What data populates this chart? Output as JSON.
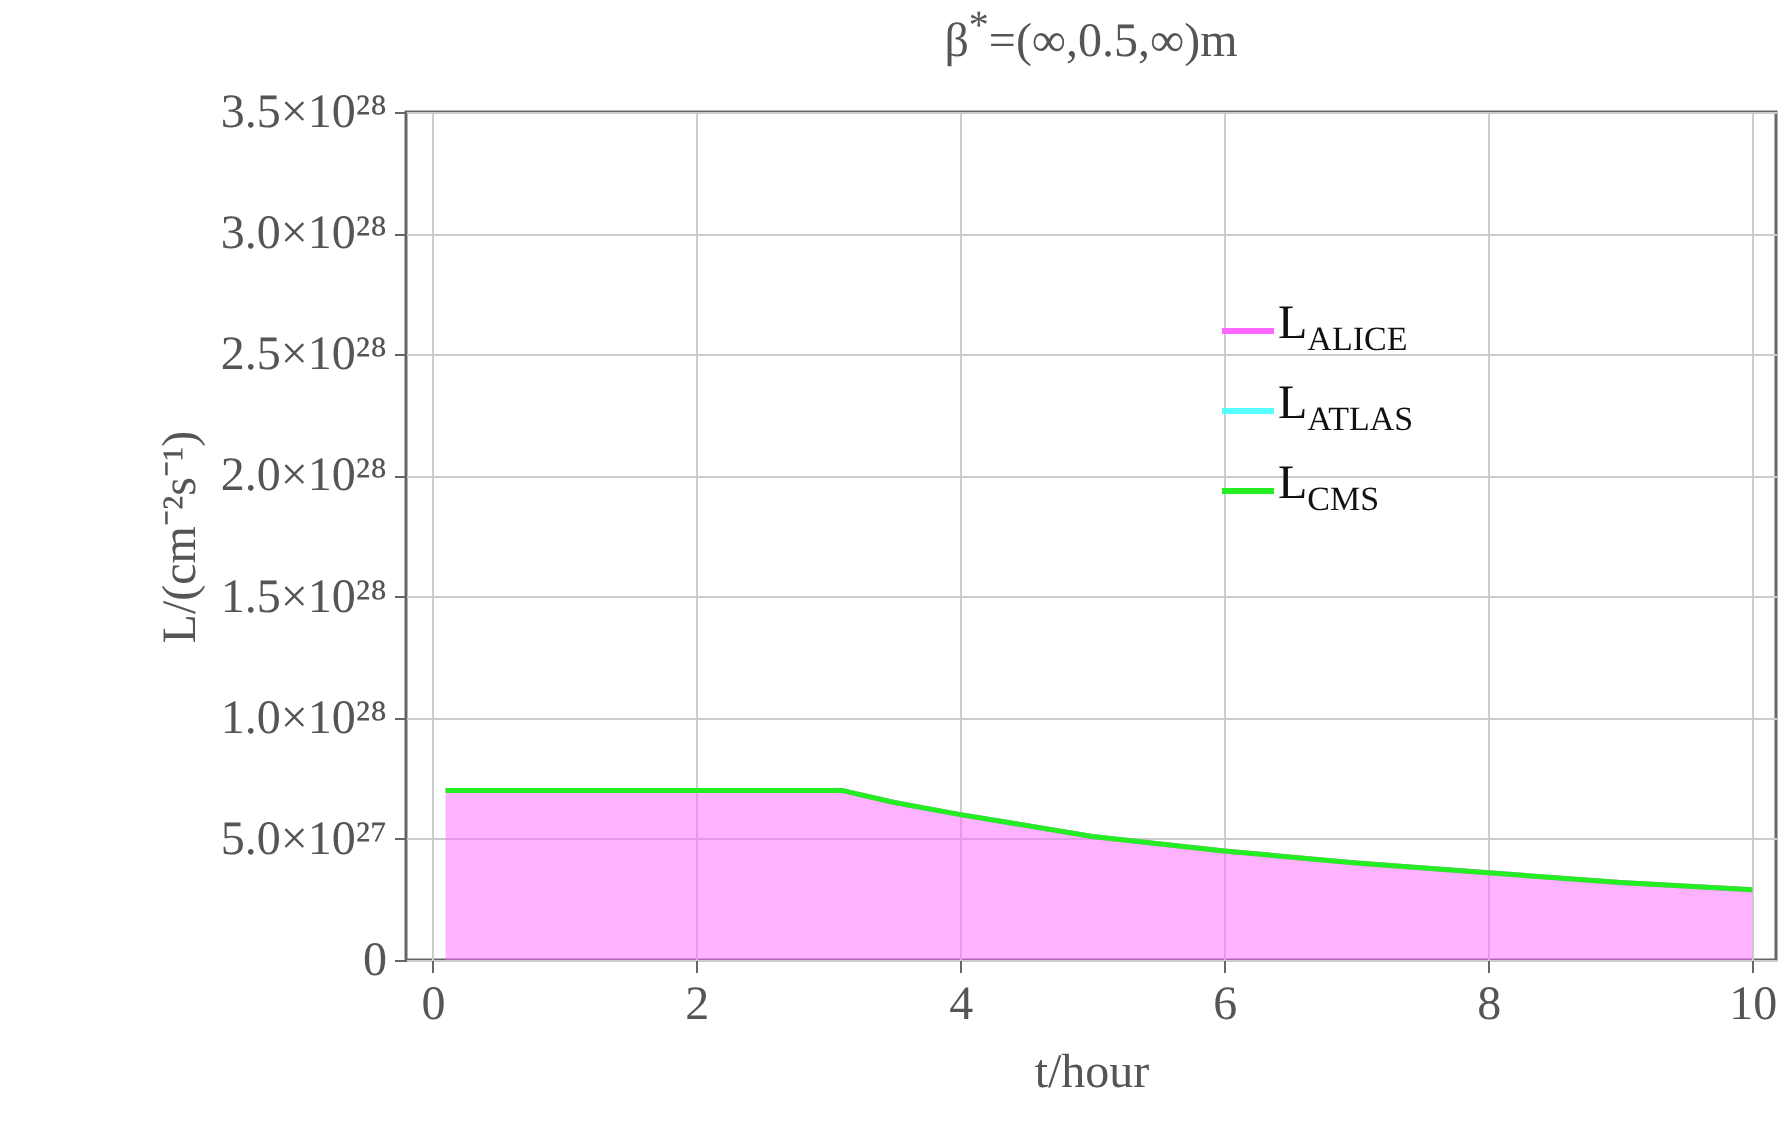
{
  "chart_data": {
    "type": "line",
    "title": "β$^{*}$=(∞,0.5,∞)m",
    "xlabel": "t/hour",
    "ylabel": "L/(cm⁻²s⁻¹)",
    "x": [
      0.1,
      1,
      2,
      3.1,
      3.5,
      4,
      5,
      6,
      7,
      8,
      9,
      10
    ],
    "series": [
      {
        "name": "L$_{ALICE}$",
        "type": "area",
        "color": "#ff66ff",
        "values": [
          7e+27,
          7e+27,
          7e+27,
          7e+27,
          6.5e+27,
          6e+27,
          5.1e+27,
          4.5e+27,
          4e+27,
          3.6e+27,
          3.2e+27,
          2.9e+27
        ]
      },
      {
        "name": "L$_{ATLAS}$",
        "color": "#55ffff",
        "values": [
          null,
          null,
          null,
          null,
          null,
          null,
          null,
          null,
          null,
          null,
          null,
          null
        ]
      },
      {
        "name": "L$_{CMS}$",
        "color": "#22ee22",
        "values": [
          7e+27,
          7e+27,
          7e+27,
          7e+27,
          6.5e+27,
          6e+27,
          5.1e+27,
          4.5e+27,
          4e+27,
          3.6e+27,
          3.2e+27,
          2.9e+27
        ]
      }
    ],
    "xlim": [
      -0.2,
      10.18
    ],
    "ylim": [
      0,
      3.5e+28
    ],
    "xticks": [
      0,
      2,
      4,
      6,
      8,
      10
    ],
    "yticks": [
      0,
      {
        "value": 5e+27,
        "label": "5.0×10²⁷"
      },
      {
        "value": 1e+28,
        "label": "1.0×10²⁸"
      },
      {
        "value": 1.5e+28,
        "label": "1.5×10²⁸"
      },
      {
        "value": 2e+28,
        "label": "2.0×10²⁸"
      },
      {
        "value": 2.5e+28,
        "label": "2.5×10²⁸"
      },
      {
        "value": 3e+28,
        "label": "3.0×10²⁸"
      },
      {
        "value": 3.5e+28,
        "label": "3.5×10²⁸"
      }
    ],
    "grid": true,
    "legend": "right",
    "marker": "none",
    "line_style": "solid"
  }
}
